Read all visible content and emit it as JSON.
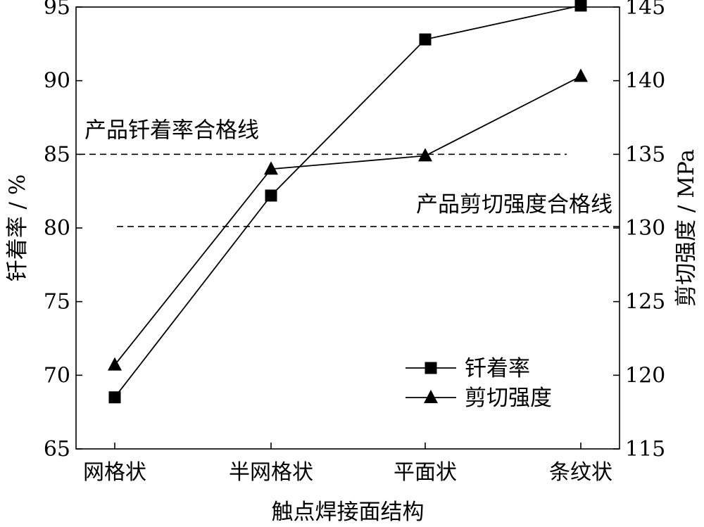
{
  "chart_data": {
    "type": "line",
    "categories": [
      "网格状",
      "半网格状",
      "平面状",
      "条纹状"
    ],
    "xlabel": "触点焊接面结构",
    "ylabel": "钎着率 / %",
    "y2label": "剪切强度 / MPa",
    "ylim": [
      65,
      95
    ],
    "y2lim": [
      115,
      145
    ],
    "yticks": [
      "65",
      "70",
      "75",
      "80",
      "85",
      "90",
      "95"
    ],
    "y2ticks": [
      "115",
      "120",
      "125",
      "130",
      "135",
      "140",
      "145"
    ],
    "grid": false,
    "legend_position": "bottom-right",
    "series": [
      {
        "name": "钎着率",
        "axis": "left",
        "marker": "square",
        "values": [
          68.5,
          82.2,
          92.8,
          95.1
        ]
      },
      {
        "name": "剪切强度",
        "axis": "right",
        "marker": "triangle",
        "values": [
          120.7,
          134.0,
          134.9,
          140.3
        ]
      }
    ],
    "reference_lines": [
      {
        "label": "产品钎着率合格线",
        "axis": "left",
        "value": 85
      },
      {
        "label": "产品剪切强度合格线",
        "axis": "right",
        "value": 130.1
      }
    ]
  }
}
